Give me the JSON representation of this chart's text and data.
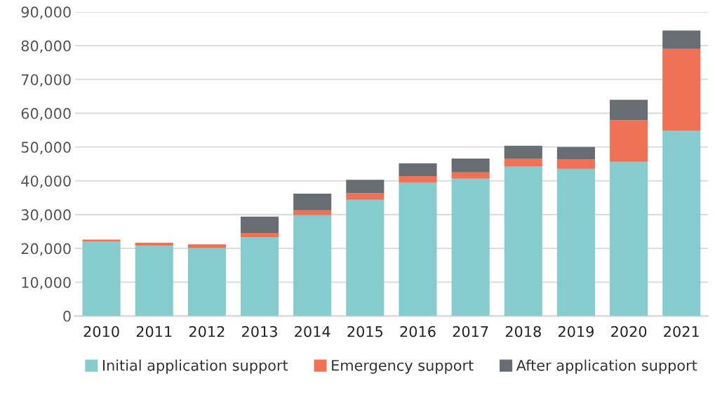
{
  "chart_data": {
    "type": "bar",
    "stacked": true,
    "categories": [
      "2010",
      "2011",
      "2012",
      "2013",
      "2014",
      "2015",
      "2016",
      "2017",
      "2018",
      "2019",
      "2020",
      "2021"
    ],
    "series": [
      {
        "name": "Initial application support",
        "color": "#86cccf",
        "values": [
          22000,
          20800,
          20100,
          23300,
          29800,
          34400,
          39400,
          40600,
          44200,
          43500,
          45600,
          54800
        ]
      },
      {
        "name": "Emergency support",
        "color": "#ef7257",
        "values": [
          600,
          900,
          1100,
          1300,
          1500,
          1900,
          2000,
          1900,
          2300,
          2800,
          12300,
          24200
        ]
      },
      {
        "name": "After application support",
        "color": "#686c73",
        "values": [
          0,
          0,
          0,
          4800,
          4900,
          4000,
          3800,
          4100,
          3900,
          3700,
          6100,
          5500
        ]
      }
    ],
    "ylim": [
      0,
      90000
    ],
    "yticks": [
      {
        "value": 0,
        "label": "0"
      },
      {
        "value": 10000,
        "label": "10,000"
      },
      {
        "value": 20000,
        "label": "20,000"
      },
      {
        "value": 30000,
        "label": "30,000"
      },
      {
        "value": 40000,
        "label": "40,000"
      },
      {
        "value": 50000,
        "label": "50,000"
      },
      {
        "value": 60000,
        "label": "60,000"
      },
      {
        "value": 70000,
        "label": "70,000"
      },
      {
        "value": 80000,
        "label": "80,000"
      },
      {
        "value": 90000,
        "label": "90,000"
      }
    ],
    "grid": "y",
    "legend": "bottom"
  }
}
